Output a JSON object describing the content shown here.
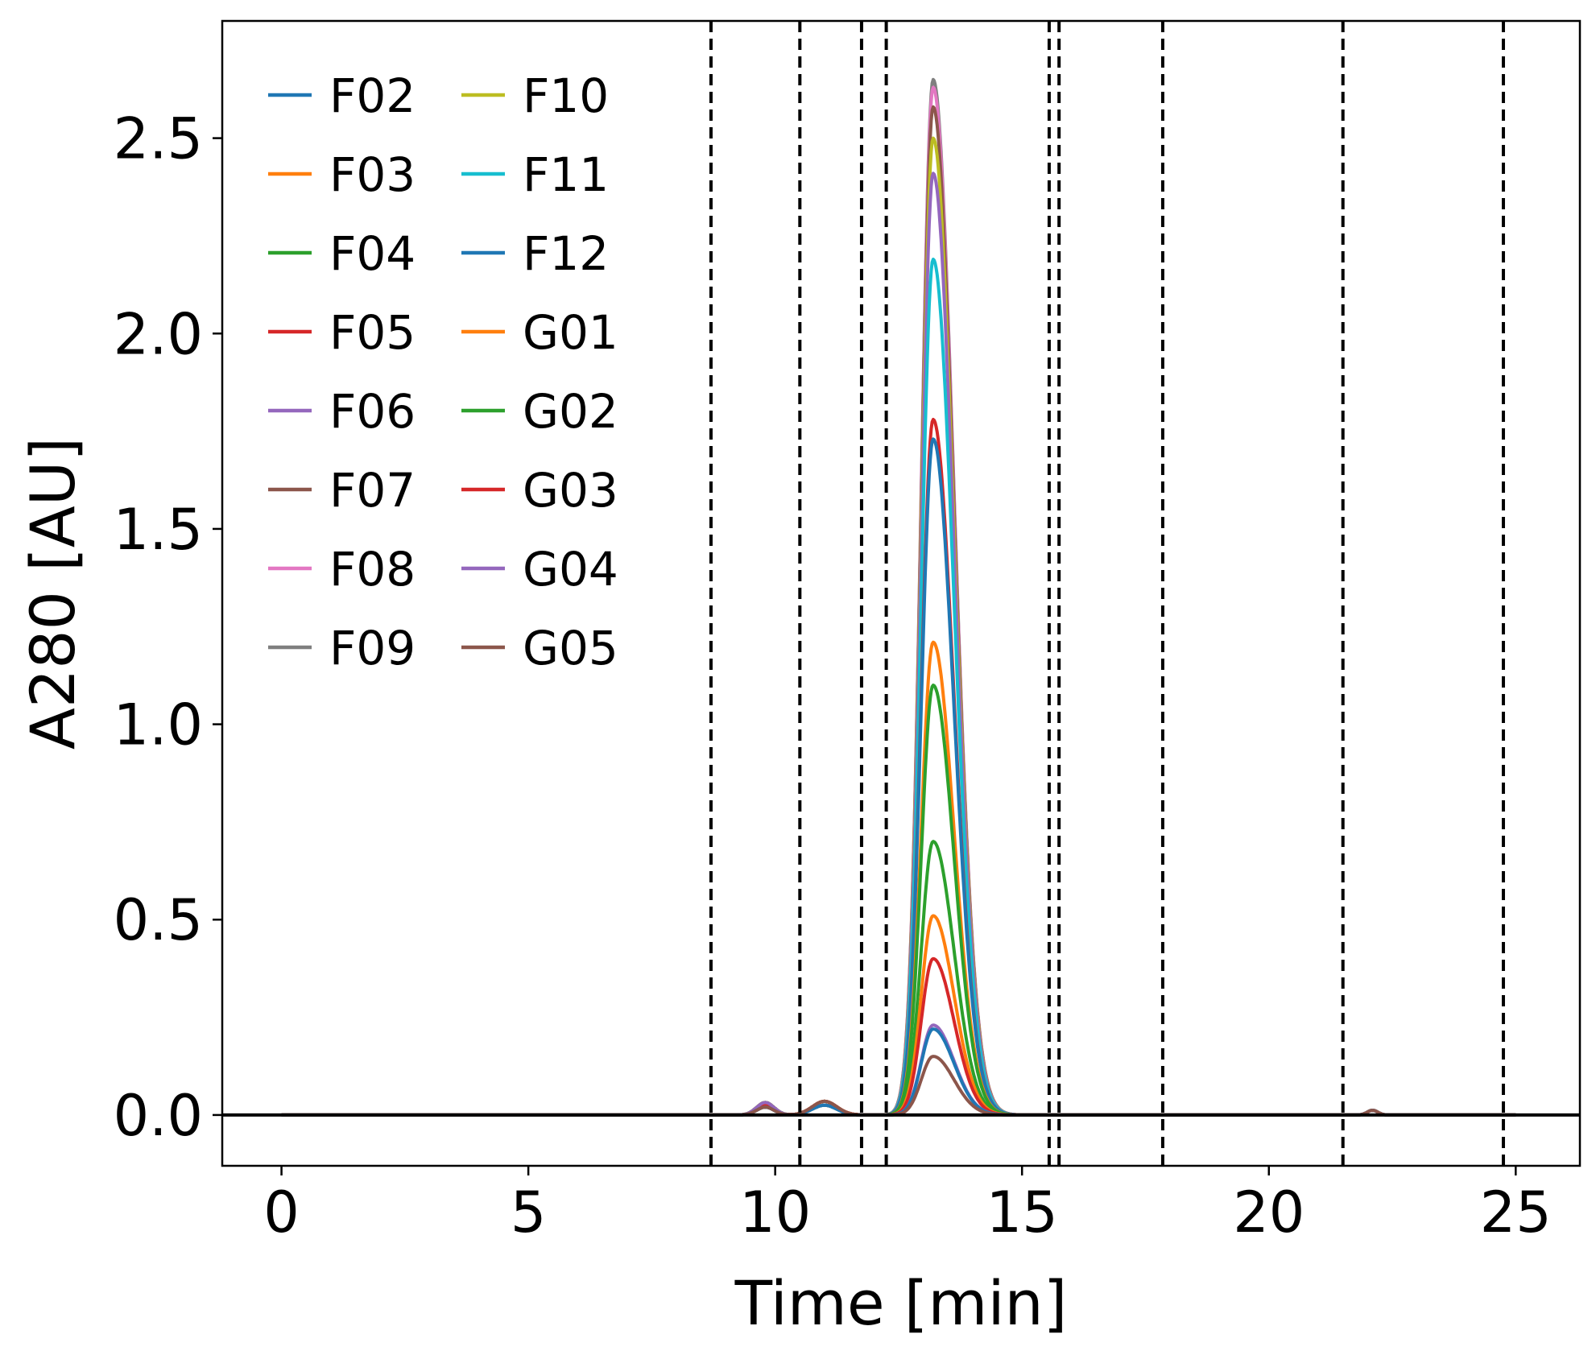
{
  "chart_data": {
    "type": "line",
    "title": "",
    "xlabel": "Time [min]",
    "ylabel": "A280 [AU]",
    "xlim": [
      -1.2,
      26.3
    ],
    "ylim": [
      -0.13,
      2.8
    ],
    "xticks": [
      0,
      5,
      10,
      15,
      20,
      25
    ],
    "xtick_labels": [
      "0",
      "5",
      "10",
      "15",
      "20",
      "25"
    ],
    "yticks": [
      0.0,
      0.5,
      1.0,
      1.5,
      2.0,
      2.5
    ],
    "ytick_labels": [
      "0.0",
      "0.5",
      "1.0",
      "1.5",
      "2.0",
      "2.5"
    ],
    "grid": false,
    "legend_position": "top-left",
    "legend_columns": 2,
    "baseline_y": 0.0,
    "vertical_dashed_lines_x": [
      8.7,
      10.5,
      11.75,
      12.25,
      15.55,
      15.75,
      17.85,
      21.5,
      24.75
    ],
    "peak_time": 13.2,
    "series": [
      {
        "name": "F02",
        "color": "#1f77b4",
        "peak": 0.22
      },
      {
        "name": "F03",
        "color": "#ff7f0e",
        "peak": 0.51
      },
      {
        "name": "F04",
        "color": "#2ca02c",
        "peak": 0.7
      },
      {
        "name": "F05",
        "color": "#d62728",
        "peak": 1.78
      },
      {
        "name": "F06",
        "color": "#9467bd",
        "peak": 2.41
      },
      {
        "name": "F07",
        "color": "#8c564b",
        "peak": 2.58
      },
      {
        "name": "F08",
        "color": "#e377c2",
        "peak": 2.63
      },
      {
        "name": "F09",
        "color": "#7f7f7f",
        "peak": 2.65
      },
      {
        "name": "F10",
        "color": "#bcbd22",
        "peak": 2.5
      },
      {
        "name": "F11",
        "color": "#17becf",
        "peak": 2.19
      },
      {
        "name": "F12",
        "color": "#1f77b4",
        "peak": 1.73
      },
      {
        "name": "G01",
        "color": "#ff7f0e",
        "peak": 1.21
      },
      {
        "name": "G02",
        "color": "#2ca02c",
        "peak": 1.1
      },
      {
        "name": "G03",
        "color": "#d62728",
        "peak": 0.4
      },
      {
        "name": "G04",
        "color": "#9467bd",
        "peak": 0.23
      },
      {
        "name": "G05",
        "color": "#8c564b",
        "peak": 0.15
      }
    ]
  }
}
